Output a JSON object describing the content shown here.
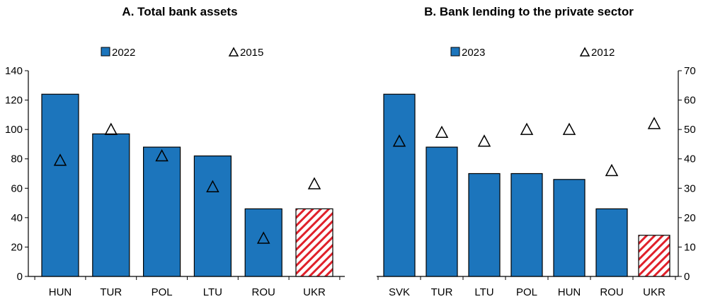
{
  "colors": {
    "bar": "#1c75bc",
    "bar_stroke": "#000000",
    "hatch_red": "#e0202a",
    "axis": "#000000"
  },
  "chart_data": [
    {
      "type": "bar",
      "title": "A. Total bank assets",
      "categories": [
        "HUN",
        "TUR",
        "POL",
        "LTU",
        "ROU",
        "UKR"
      ],
      "series": [
        {
          "name": "2022",
          "kind": "bar",
          "values": [
            124,
            97,
            88,
            82,
            46,
            46
          ],
          "highlight": [
            "UKR"
          ]
        },
        {
          "name": "2015",
          "kind": "triangle-marker",
          "values": [
            79,
            100,
            82,
            61,
            26,
            63
          ]
        }
      ],
      "y_axis": {
        "side": "left",
        "ylim": [
          0,
          140
        ],
        "ticks": [
          0,
          20,
          40,
          60,
          80,
          100,
          120,
          140
        ]
      },
      "legend": {
        "placement": "top",
        "entries": [
          "2022",
          "2015"
        ]
      }
    },
    {
      "type": "bar",
      "title": "B. Bank lending to the private sector",
      "categories": [
        "SVK",
        "TUR",
        "LTU",
        "POL",
        "HUN",
        "ROU",
        "UKR"
      ],
      "series": [
        {
          "name": "2023",
          "kind": "bar",
          "values": [
            62,
            44,
            35,
            35,
            33,
            23,
            14
          ],
          "highlight": [
            "UKR"
          ]
        },
        {
          "name": "2012",
          "kind": "triangle-marker",
          "values": [
            46,
            49,
            46,
            50,
            50,
            36,
            52
          ]
        }
      ],
      "y_axis": {
        "side": "right",
        "ylim": [
          0,
          70
        ],
        "ticks": [
          0,
          10,
          20,
          30,
          40,
          50,
          60,
          70
        ]
      },
      "legend": {
        "placement": "top",
        "entries": [
          "2023",
          "2012"
        ]
      }
    }
  ]
}
